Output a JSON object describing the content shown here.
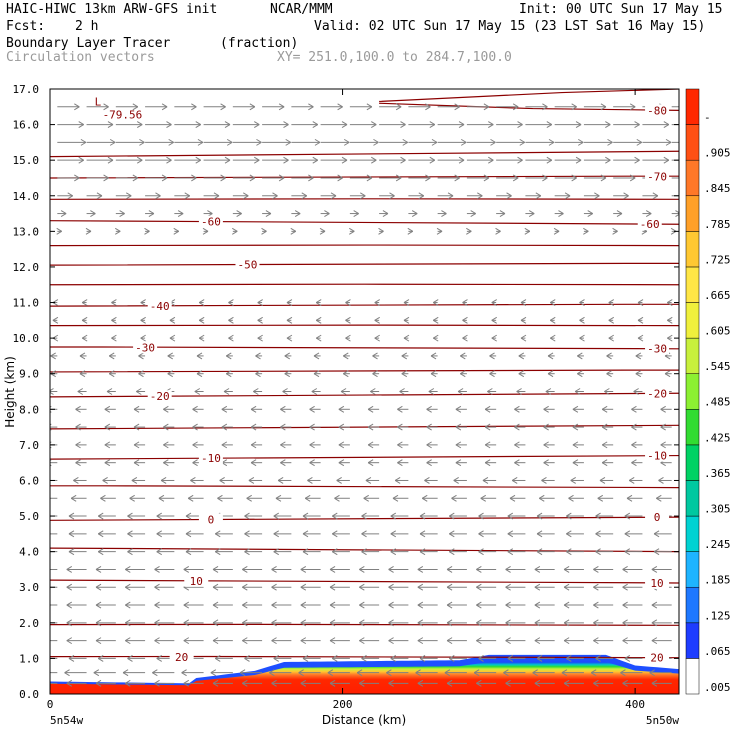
{
  "header": {
    "model": "HAIC-HIWC 13km ARW-GFS init",
    "org": "NCAR/MMM",
    "init": "Init: 00 UTC Sun 17 May 15",
    "fcst_label": "Fcst:",
    "fcst_value": "2 h",
    "valid": "Valid: 02 UTC Sun 17 May 15 (23 LST Sat 16 May 15)",
    "field_name": "Boundary Layer Tracer",
    "field_unit": "(fraction)",
    "vector_label": "Circulation vectors",
    "xy_label": "XY= 251.0,100.0 to 284.7,100.0"
  },
  "colors": {
    "contour": "#8b0000",
    "vector": "#808080",
    "frame": "#000000",
    "blue_edge": "#1e4fff"
  },
  "chart_data": {
    "type": "heatmap",
    "xlabel": "Distance (km)",
    "ylabel": "Height (km)",
    "xlim": [
      0,
      430
    ],
    "ylim": [
      0,
      17
    ],
    "x_ticks": [
      {
        "value": 0,
        "label": "0"
      },
      {
        "value": 200,
        "label": "200"
      },
      {
        "value": 400,
        "label": "400"
      }
    ],
    "x_corner_labels": {
      "left": "5n54w",
      "right": "5n50w"
    },
    "y_ticks": [
      {
        "value": 0,
        "label": "0.0"
      },
      {
        "value": 1,
        "label": "1.0"
      },
      {
        "value": 2,
        "label": "2.0"
      },
      {
        "value": 3,
        "label": "3.0"
      },
      {
        "value": 4,
        "label": "4.0"
      },
      {
        "value": 5,
        "label": "5.0"
      },
      {
        "value": 6,
        "label": "6.0"
      },
      {
        "value": 7,
        "label": "7.0"
      },
      {
        "value": 8,
        "label": "8.0"
      },
      {
        "value": 9,
        "label": "9.0"
      },
      {
        "value": 10,
        "label": "10.0"
      },
      {
        "value": 11,
        "label": "11.0"
      },
      {
        "value": 12,
        "label": "12.0"
      },
      {
        "value": 13,
        "label": "13.0"
      },
      {
        "value": 14,
        "label": "14.0"
      },
      {
        "value": 15,
        "label": "15.0"
      },
      {
        "value": 16,
        "label": "16.0"
      },
      {
        "value": 17,
        "label": "17.0"
      }
    ],
    "boundary_layer_top_km": {
      "x": [
        0,
        60,
        95,
        100,
        140,
        160,
        280,
        300,
        380,
        400,
        430
      ],
      "y": [
        0.35,
        0.32,
        0.3,
        0.45,
        0.65,
        0.9,
        0.95,
        1.1,
        1.1,
        0.8,
        0.7
      ]
    },
    "temperature_contours": {
      "unit": "C",
      "lines": [
        {
          "value": 20,
          "y_left": 1.05,
          "y_right": 1.02,
          "label": "20",
          "label_x": [
            90,
            415
          ]
        },
        {
          "value": 15,
          "y_left": 1.95,
          "y_right": 1.93
        },
        {
          "value": 10,
          "y_left": 3.2,
          "y_right": 3.12,
          "label": "10",
          "label_x": [
            100,
            415
          ]
        },
        {
          "value": 5,
          "y_left": 4.1,
          "y_right": 4.0
        },
        {
          "value": 0,
          "y_left": 4.88,
          "y_right": 4.97,
          "label": "0",
          "label_x": [
            110,
            415
          ]
        },
        {
          "value": -5,
          "y_left": 5.85,
          "y_right": 5.8
        },
        {
          "value": -10,
          "y_left": 6.6,
          "y_right": 6.7,
          "label": "-10",
          "label_x": [
            110,
            415
          ]
        },
        {
          "value": -15,
          "y_left": 7.45,
          "y_right": 7.55
        },
        {
          "value": -20,
          "y_left": 8.35,
          "y_right": 8.45,
          "label": "-20",
          "label_x": [
            75,
            415
          ]
        },
        {
          "value": -25,
          "y_left": 9.05,
          "y_right": 9.1
        },
        {
          "value": -30,
          "y_left": 9.75,
          "y_right": 9.7,
          "label": "-30",
          "label_x": [
            65,
            415
          ]
        },
        {
          "value": -35,
          "y_left": 10.35,
          "y_right": 10.35
        },
        {
          "value": -40,
          "y_left": 10.9,
          "y_right": 10.95,
          "label": "-40",
          "label_x": [
            75,
            0
          ]
        },
        {
          "value": -45,
          "y_left": 11.5,
          "y_right": 11.5
        },
        {
          "value": -50,
          "y_left": 12.05,
          "y_right": 12.1,
          "label": "-50",
          "label_x": [
            135,
            0
          ]
        },
        {
          "value": -55,
          "y_left": 12.6,
          "y_right": 12.6
        },
        {
          "value": -60,
          "y_left": 13.3,
          "y_right": 13.2,
          "label": "-60",
          "label_x": [
            110,
            410
          ]
        },
        {
          "value": -65,
          "y_left": 13.9,
          "y_right": 13.9
        },
        {
          "value": -70,
          "y_left": 14.5,
          "y_right": 14.55,
          "label": "-70",
          "label_x": [
            0,
            415
          ]
        },
        {
          "value": -75,
          "y_left": 15.1,
          "y_right": 15.25
        }
      ],
      "upper_branch": {
        "x": [
          225,
          350,
          430
        ],
        "y": [
          16.65,
          16.9,
          17.0
        ]
      },
      "upper_branch2": {
        "x": [
          225,
          330,
          430
        ],
        "y": [
          16.6,
          16.45,
          16.4
        ],
        "label": "-80",
        "label_x": 415
      },
      "min_marker": {
        "label": "L",
        "value_label": "-79.56",
        "x": 25,
        "y": 16.4
      }
    },
    "wind_profile": {
      "heights_km": [
        0.3,
        0.6,
        1.0,
        1.5,
        2.0,
        2.5,
        3.0,
        3.5,
        4.0,
        4.5,
        5.0,
        5.5,
        6.0,
        6.5,
        7.0,
        7.5,
        8.0,
        8.5,
        9.0,
        9.5,
        10.0,
        10.5,
        11.0,
        11.5,
        12.0,
        12.5,
        13.0,
        13.5,
        14.0,
        14.5,
        15.0,
        15.5,
        16.0,
        16.5
      ],
      "u_component": [
        -0.9,
        -1.0,
        -0.8,
        -0.9,
        -0.9,
        -0.9,
        -0.9,
        -0.9,
        -0.8,
        -0.8,
        -0.8,
        -0.7,
        -0.6,
        -0.5,
        -0.5,
        -0.5,
        -0.5,
        -0.4,
        -0.3,
        -0.3,
        -0.2,
        -0.2,
        -0.2,
        -0.1,
        0.1,
        0.1,
        0.2,
        0.4,
        0.7,
        1.0,
        1.2,
        1.3,
        1.2,
        1.0
      ]
    },
    "colorbar": {
      "min": 0.0,
      "max": 1.0,
      "labels": [
        ".005",
        ".065",
        ".125",
        ".185",
        ".245",
        ".305",
        ".365",
        ".425",
        ".485",
        ".545",
        ".605",
        ".665",
        ".725",
        ".785",
        ".845",
        ".905",
        "-"
      ],
      "colors": [
        "#ffffff",
        "#1e3cff",
        "#1e78ff",
        "#1eb4ff",
        "#00d2d2",
        "#00c8a0",
        "#00d264",
        "#32dc32",
        "#8cf032",
        "#c8f03c",
        "#f0f03c",
        "#ffe646",
        "#ffc832",
        "#ffa028",
        "#ff7828",
        "#ff5014",
        "#ff2800"
      ]
    }
  }
}
